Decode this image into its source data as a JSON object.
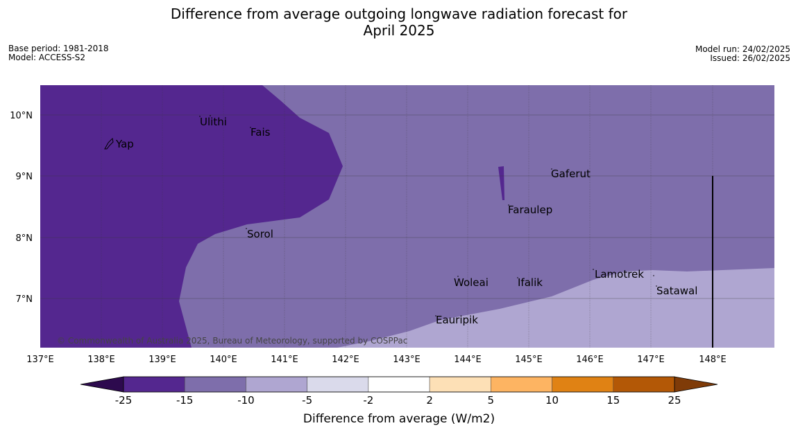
{
  "title_line1": "Difference from average outgoing longwave radiation forecast for",
  "title_line2": "April 2025",
  "base_period": "Base period: 1981-2018",
  "model": "Model: ACCESS-S2",
  "model_run": "Model run: 24/02/2025",
  "issued": "Issued: 26/02/2025",
  "copyright": "© Commonwealth of Australia 2025, Bureau of Meteorology, supported by COSPPac",
  "lon_ticks": [
    "137°E",
    "138°E",
    "139°E",
    "140°E",
    "141°E",
    "142°E",
    "143°E",
    "144°E",
    "145°E",
    "146°E",
    "147°E",
    "148°E"
  ],
  "lat_ticks": [
    "10°N",
    "9°N",
    "8°N",
    "7°N"
  ],
  "places": [
    {
      "name": "Yap"
    },
    {
      "name": "Ulithi"
    },
    {
      "name": "Fais"
    },
    {
      "name": "Gaferut"
    },
    {
      "name": "Faraulep"
    },
    {
      "name": "Sorol"
    },
    {
      "name": "Woleai"
    },
    {
      "name": "Ifalik"
    },
    {
      "name": "Lamotrek"
    },
    {
      "name": "Satawal"
    },
    {
      "name": "Eauripik"
    }
  ],
  "colorbar": {
    "label": "Difference from average (W/m2)",
    "ticks": [
      "-25",
      "-15",
      "-10",
      "-5",
      "-2",
      "2",
      "5",
      "10",
      "15",
      "25"
    ],
    "colors": {
      "below_min": "#2d0a4e",
      "bins": [
        "#54278f",
        "#7e6eab",
        "#afa6d1",
        "#dadaeb",
        "#ffffff",
        "#fde0b6",
        "#fdb462",
        "#e08214",
        "#b35806"
      ],
      "above_max": "#7f3b08"
    }
  },
  "map_colors": {
    "dark_purple": "#54278f",
    "mid_purple": "#7e6eab",
    "light_purple": "#afa6d1"
  }
}
